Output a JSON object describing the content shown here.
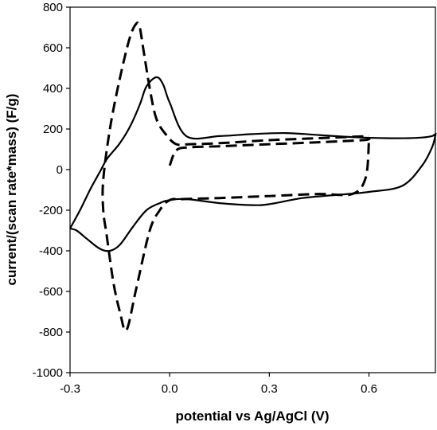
{
  "chart_data": {
    "type": "line",
    "title": "",
    "xlabel": "potential vs Ag/AgCl (V)",
    "ylabel": "current/(scan rate*mass) (F/g)",
    "xlim": [
      -0.3,
      0.8
    ],
    "ylim": [
      -1000,
      800
    ],
    "xticks": [
      -0.3,
      0.0,
      0.3,
      0.6
    ],
    "xtick_labels": [
      "-0.3",
      "0.0",
      "0.3",
      "0.6"
    ],
    "yticks": [
      -1000,
      -800,
      -600,
      -400,
      -200,
      0,
      200,
      400,
      600,
      800
    ],
    "ytick_labels": [
      "-1000",
      "-800",
      "-600",
      "-400",
      "-200",
      "0",
      "200",
      "400",
      "600",
      "800"
    ],
    "grid": false,
    "legend": "none",
    "series": [
      {
        "style": "solid",
        "x": [
          -0.3,
          -0.27,
          -0.24,
          -0.21,
          -0.19,
          -0.17,
          -0.15,
          -0.12,
          -0.09,
          -0.07,
          -0.04,
          -0.02,
          0.0,
          0.05,
          0.15,
          0.25,
          0.35,
          0.45,
          0.55,
          0.65,
          0.72,
          0.76,
          0.79,
          0.8,
          0.8,
          0.79,
          0.76,
          0.7,
          0.6,
          0.5,
          0.4,
          0.3,
          0.25,
          0.15,
          0.05,
          0.0,
          -0.03,
          -0.07,
          -0.11,
          -0.15,
          -0.18,
          -0.21,
          -0.25,
          -0.28,
          -0.3
        ],
        "y": [
          -290,
          -200,
          -100,
          -10,
          50,
          90,
          130,
          210,
          320,
          410,
          455,
          420,
          330,
          165,
          165,
          175,
          180,
          170,
          160,
          155,
          155,
          158,
          165,
          175,
          170,
          110,
          20,
          -80,
          -110,
          -125,
          -140,
          -170,
          -175,
          -165,
          -145,
          -150,
          -165,
          -200,
          -280,
          -370,
          -400,
          -390,
          -340,
          -300,
          -290
        ]
      },
      {
        "style": "dashed",
        "x": [
          0.0,
          0.02,
          0.06,
          0.15,
          0.3,
          0.45,
          0.58,
          0.6,
          0.6,
          0.59,
          0.55,
          0.45,
          0.3,
          0.15,
          0.04,
          0.0,
          -0.03,
          -0.06,
          -0.1,
          -0.13,
          -0.15,
          -0.17,
          -0.19,
          -0.2,
          -0.2,
          -0.18,
          -0.15,
          -0.12,
          -0.1,
          -0.09,
          -0.08,
          -0.06,
          -0.04,
          -0.01,
          0.02,
          0.06,
          0.15,
          0.3,
          0.45,
          0.6
        ],
        "y": [
          20,
          95,
          110,
          115,
          125,
          135,
          145,
          150,
          140,
          -40,
          -120,
          -120,
          -130,
          -140,
          -145,
          -150,
          -200,
          -300,
          -580,
          -790,
          -700,
          -550,
          -320,
          -200,
          -50,
          200,
          450,
          650,
          720,
          700,
          600,
          400,
          250,
          170,
          125,
          125,
          130,
          145,
          155,
          165
        ]
      }
    ]
  }
}
